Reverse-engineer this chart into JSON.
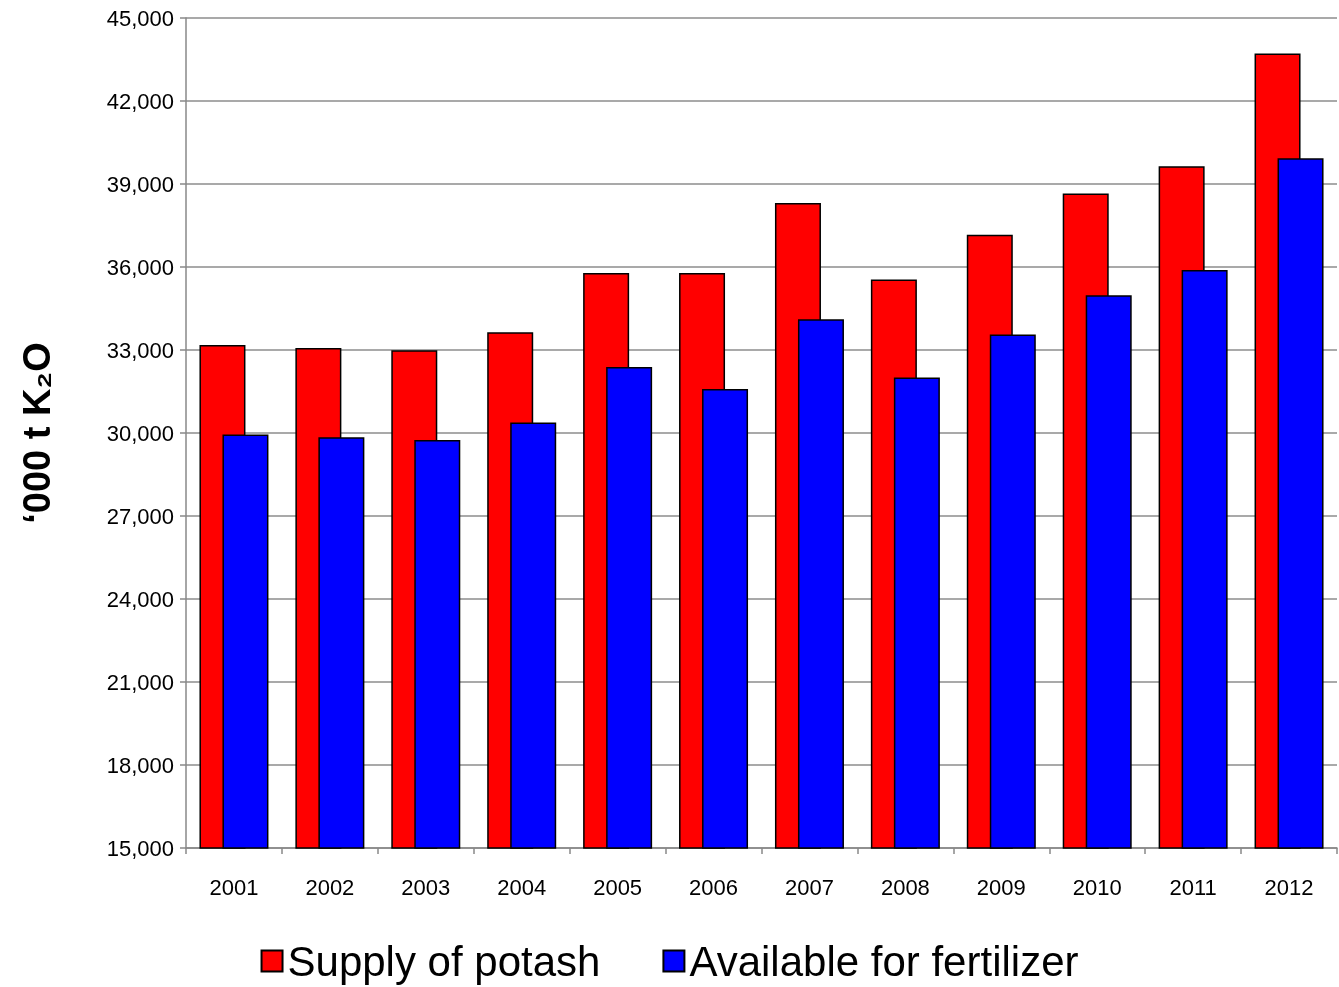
{
  "chart_data": {
    "type": "bar",
    "categories": [
      "2001",
      "2002",
      "2003",
      "2004",
      "2005",
      "2006",
      "2007",
      "2008",
      "2009",
      "2010",
      "2011",
      "2012"
    ],
    "series": [
      {
        "name": "Supply of potash",
        "color": "#ff0000",
        "values": [
          33180,
          33070,
          32990,
          33640,
          35780,
          35780,
          38310,
          35550,
          37170,
          38660,
          39640,
          43720
        ]
      },
      {
        "name": "Available for fertilizer",
        "color": "#0000ff",
        "values": [
          29950,
          29850,
          29750,
          30380,
          32390,
          31590,
          34110,
          32010,
          33560,
          34980,
          35890,
          39930
        ]
      }
    ],
    "ylabel": "‘000 t K₂O",
    "ylim": [
      15000,
      45000
    ],
    "yticks": [
      {
        "value": 15000,
        "label": "15,000"
      },
      {
        "value": 18000,
        "label": "18,000"
      },
      {
        "value": 21000,
        "label": "21,000"
      },
      {
        "value": 24000,
        "label": "24,000"
      },
      {
        "value": 27000,
        "label": "27,000"
      },
      {
        "value": 30000,
        "label": "30,000"
      },
      {
        "value": 33000,
        "label": "33,000"
      },
      {
        "value": 36000,
        "label": "36,000"
      },
      {
        "value": 39000,
        "label": "39,000"
      },
      {
        "value": 42000,
        "label": "42,000"
      },
      {
        "value": 45000,
        "label": "45,000"
      }
    ],
    "grid": "y",
    "legend": "bottom"
  }
}
